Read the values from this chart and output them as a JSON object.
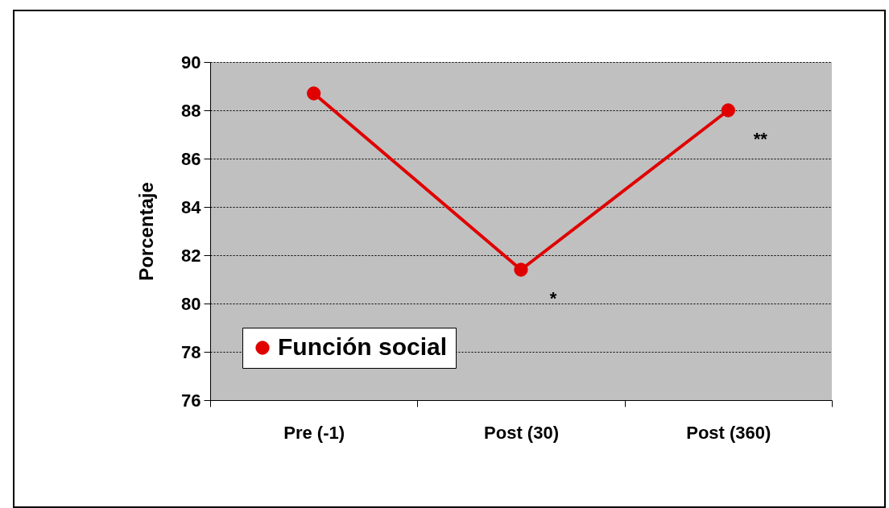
{
  "chart_data": {
    "type": "line",
    "ylabel": "Porcentaje",
    "categories": [
      "Pre (-1)",
      "Post (30)",
      "Post (360)"
    ],
    "series": [
      {
        "name": "Función social",
        "color": "#e00000",
        "values": [
          88.7,
          81.4,
          88.0
        ]
      }
    ],
    "ylim": [
      76,
      90
    ],
    "yticks": [
      76,
      78,
      80,
      82,
      84,
      86,
      88,
      90
    ],
    "grid": "y",
    "legend": "bottom left",
    "marker": "circle",
    "line_style": "solid",
    "annotations": [
      {
        "text": "*",
        "x": "Post (30)",
        "y": 81.4
      },
      {
        "text": "**",
        "x": "Post (360)",
        "y": 88.0
      }
    ]
  }
}
